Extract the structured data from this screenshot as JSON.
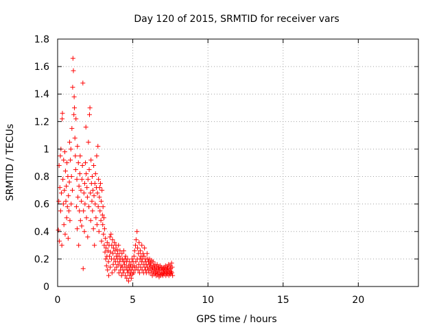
{
  "chart_data": {
    "type": "scatter",
    "title": "Day 120 of 2015, SRMTID for receiver vars",
    "xlabel": "GPS time / hours",
    "ylabel": "SRMTID / TECUs",
    "xlim": [
      0,
      24
    ],
    "ylim": [
      0,
      1.8
    ],
    "xticks": [
      0,
      5,
      10,
      15,
      20
    ],
    "xtick_labels": [
      "0",
      "5",
      "10",
      "15",
      "20"
    ],
    "yticks": [
      0,
      0.2,
      0.4,
      0.6,
      0.8,
      1,
      1.2,
      1.4,
      1.6,
      1.8
    ],
    "ytick_labels": [
      "0",
      "0.2",
      "0.4",
      "0.6",
      "0.8",
      "1",
      "1.2",
      "1.4",
      "1.6",
      "1.8"
    ],
    "grid": true,
    "marker": "+",
    "color": "#ff0000",
    "series": [
      {
        "name": "SRMTID",
        "points": [
          [
            0.05,
            0.41
          ],
          [
            0.08,
            0.62
          ],
          [
            0.1,
            0.88
          ],
          [
            0.12,
            0.33
          ],
          [
            0.15,
            0.72
          ],
          [
            0.18,
            0.95
          ],
          [
            0.2,
            0.55
          ],
          [
            0.22,
            1.0
          ],
          [
            0.25,
            0.68
          ],
          [
            0.28,
            0.3
          ],
          [
            0.3,
            1.22
          ],
          [
            0.32,
            1.26
          ],
          [
            0.35,
            0.78
          ],
          [
            0.38,
            0.6
          ],
          [
            0.4,
            0.92
          ],
          [
            0.42,
            0.45
          ],
          [
            0.45,
            0.7
          ],
          [
            0.48,
            0.98
          ],
          [
            0.5,
            0.38
          ],
          [
            0.52,
            0.84
          ],
          [
            0.55,
            0.62
          ],
          [
            0.58,
            0.73
          ],
          [
            0.6,
            0.5
          ],
          [
            0.62,
            0.9
          ],
          [
            0.65,
            0.58
          ],
          [
            0.68,
            0.8
          ],
          [
            0.7,
            0.35
          ],
          [
            0.72,
            0.66
          ],
          [
            0.75,
            0.55
          ],
          [
            0.78,
            0.76
          ],
          [
            0.8,
            1.05
          ],
          [
            0.82,
            0.48
          ],
          [
            0.85,
            0.92
          ],
          [
            0.88,
            1.0
          ],
          [
            0.9,
            0.6
          ],
          [
            0.92,
            0.8
          ],
          [
            0.95,
            1.15
          ],
          [
            0.98,
            0.7
          ],
          [
            1.0,
            1.45
          ],
          [
            1.02,
            1.66
          ],
          [
            1.05,
            1.57
          ],
          [
            1.08,
            1.25
          ],
          [
            1.1,
            1.38
          ],
          [
            1.12,
            1.3
          ],
          [
            1.15,
            1.08
          ],
          [
            1.18,
            0.95
          ],
          [
            1.2,
            0.85
          ],
          [
            1.22,
            1.22
          ],
          [
            1.25,
            0.58
          ],
          [
            1.28,
            0.78
          ],
          [
            1.3,
            0.42
          ],
          [
            1.32,
            1.02
          ],
          [
            1.35,
            0.65
          ],
          [
            1.38,
            0.9
          ],
          [
            1.4,
            0.3
          ],
          [
            1.42,
            0.73
          ],
          [
            1.45,
            0.55
          ],
          [
            1.48,
            0.82
          ],
          [
            1.5,
            0.95
          ],
          [
            1.52,
            0.48
          ],
          [
            1.55,
            0.7
          ],
          [
            1.58,
            0.62
          ],
          [
            1.6,
            0.44
          ],
          [
            1.62,
            0.78
          ],
          [
            1.65,
            0.88
          ],
          [
            1.68,
            1.48
          ],
          [
            1.7,
            0.13
          ],
          [
            1.72,
            0.55
          ],
          [
            1.75,
            0.68
          ],
          [
            1.78,
            0.4
          ],
          [
            1.8,
            0.75
          ],
          [
            1.82,
            0.6
          ],
          [
            1.85,
            0.9
          ],
          [
            1.88,
            1.16
          ],
          [
            1.9,
            0.82
          ],
          [
            1.92,
            0.5
          ],
          [
            1.95,
            0.72
          ],
          [
            1.98,
            0.65
          ],
          [
            2.0,
            0.36
          ],
          [
            2.02,
            0.78
          ],
          [
            2.05,
            1.05
          ],
          [
            2.08,
            0.58
          ],
          [
            2.1,
            0.85
          ],
          [
            2.12,
            1.25
          ],
          [
            2.15,
            1.3
          ],
          [
            2.18,
            0.68
          ],
          [
            2.2,
            0.48
          ],
          [
            2.22,
            0.92
          ],
          [
            2.25,
            0.75
          ],
          [
            2.28,
            0.62
          ],
          [
            2.3,
            0.8
          ],
          [
            2.32,
            0.55
          ],
          [
            2.35,
            0.7
          ],
          [
            2.38,
            0.42
          ],
          [
            2.4,
            0.88
          ],
          [
            2.42,
            0.66
          ],
          [
            2.45,
            0.3
          ],
          [
            2.48,
            0.75
          ],
          [
            2.5,
            0.6
          ],
          [
            2.52,
            0.82
          ],
          [
            2.55,
            0.5
          ],
          [
            2.58,
            0.72
          ],
          [
            2.6,
            0.95
          ],
          [
            2.62,
            0.45
          ],
          [
            2.65,
            0.68
          ],
          [
            2.68,
            1.02
          ],
          [
            2.7,
            0.58
          ],
          [
            2.72,
            0.78
          ],
          [
            2.75,
            0.4
          ],
          [
            2.78,
            0.65
          ],
          [
            2.8,
            0.72
          ],
          [
            2.82,
            0.55
          ],
          [
            2.85,
            0.75
          ],
          [
            2.88,
            0.48
          ],
          [
            2.9,
            0.62
          ],
          [
            2.92,
            0.33
          ],
          [
            2.95,
            0.7
          ],
          [
            2.98,
            0.52
          ],
          [
            3.0,
            0.45
          ],
          [
            3.02,
            0.58
          ],
          [
            3.05,
            0.38
          ],
          [
            3.08,
            0.5
          ],
          [
            3.1,
            0.3
          ],
          [
            3.12,
            0.42
          ],
          [
            3.15,
            0.25
          ],
          [
            3.18,
            0.35
          ],
          [
            3.2,
            0.2
          ],
          [
            3.22,
            0.28
          ],
          [
            3.25,
            0.15
          ],
          [
            3.28,
            0.22
          ],
          [
            3.3,
            0.32
          ],
          [
            3.32,
            0.12
          ],
          [
            3.35,
            0.26
          ],
          [
            3.38,
            0.18
          ],
          [
            3.4,
            0.08
          ],
          [
            3.42,
            0.3
          ],
          [
            3.45,
            0.22
          ],
          [
            3.48,
            0.36
          ],
          [
            3.5,
            0.14
          ],
          [
            3.52,
            0.25
          ],
          [
            3.55,
            0.38
          ],
          [
            3.58,
            0.2
          ],
          [
            3.6,
            0.3
          ],
          [
            3.62,
            0.1
          ],
          [
            3.65,
            0.34
          ],
          [
            3.68,
            0.24
          ],
          [
            3.7,
            0.16
          ],
          [
            3.72,
            0.28
          ],
          [
            3.75,
            0.2
          ],
          [
            3.78,
            0.32
          ],
          [
            3.8,
            0.12
          ],
          [
            3.82,
            0.26
          ],
          [
            3.85,
            0.18
          ],
          [
            3.88,
            0.3
          ],
          [
            3.9,
            0.22
          ],
          [
            3.92,
            0.14
          ],
          [
            3.95,
            0.27
          ],
          [
            3.98,
            0.2
          ],
          [
            4.0,
            0.24
          ],
          [
            4.02,
            0.16
          ],
          [
            4.05,
            0.3
          ],
          [
            4.08,
            0.1
          ],
          [
            4.1,
            0.22
          ],
          [
            4.12,
            0.18
          ],
          [
            4.15,
            0.26
          ],
          [
            4.18,
            0.12
          ],
          [
            4.2,
            0.2
          ],
          [
            4.22,
            0.15
          ],
          [
            4.25,
            0.08
          ],
          [
            4.28,
            0.24
          ],
          [
            4.3,
            0.14
          ],
          [
            4.32,
            0.2
          ],
          [
            4.35,
            0.1
          ],
          [
            4.38,
            0.18
          ],
          [
            4.4,
            0.26
          ],
          [
            4.42,
            0.12
          ],
          [
            4.45,
            0.16
          ],
          [
            4.48,
            0.2
          ],
          [
            4.5,
            0.08
          ],
          [
            4.52,
            0.22
          ],
          [
            4.55,
            0.14
          ],
          [
            4.58,
            0.18
          ],
          [
            4.6,
            0.06
          ],
          [
            4.62,
            0.12
          ],
          [
            4.65,
            0.2
          ],
          [
            4.68,
            0.1
          ],
          [
            4.7,
            0.15
          ],
          [
            4.72,
            0.04
          ],
          [
            4.75,
            0.12
          ],
          [
            4.78,
            0.18
          ],
          [
            4.8,
            0.08
          ],
          [
            4.82,
            0.14
          ],
          [
            4.85,
            0.1
          ],
          [
            4.88,
            0.16
          ],
          [
            4.9,
            0.06
          ],
          [
            4.92,
            0.12
          ],
          [
            4.95,
            0.2
          ],
          [
            4.98,
            0.09
          ],
          [
            5.0,
            0.14
          ],
          [
            5.02,
            0.18
          ],
          [
            5.05,
            0.1
          ],
          [
            5.08,
            0.22
          ],
          [
            5.1,
            0.15
          ],
          [
            5.12,
            0.26
          ],
          [
            5.15,
            0.12
          ],
          [
            5.18,
            0.3
          ],
          [
            5.2,
            0.18
          ],
          [
            5.22,
            0.34
          ],
          [
            5.25,
            0.14
          ],
          [
            5.28,
            0.4
          ],
          [
            5.3,
            0.2
          ],
          [
            5.32,
            0.28
          ],
          [
            5.35,
            0.12
          ],
          [
            5.38,
            0.24
          ],
          [
            5.4,
            0.16
          ],
          [
            5.42,
            0.32
          ],
          [
            5.45,
            0.1
          ],
          [
            5.48,
            0.2
          ],
          [
            5.5,
            0.26
          ],
          [
            5.52,
            0.14
          ],
          [
            5.55,
            0.22
          ],
          [
            5.58,
            0.18
          ],
          [
            5.6,
            0.3
          ],
          [
            5.62,
            0.12
          ],
          [
            5.65,
            0.2
          ],
          [
            5.68,
            0.24
          ],
          [
            5.7,
            0.16
          ],
          [
            5.72,
            0.1
          ],
          [
            5.75,
            0.22
          ],
          [
            5.78,
            0.28
          ],
          [
            5.8,
            0.14
          ],
          [
            5.82,
            0.18
          ],
          [
            5.85,
            0.12
          ],
          [
            5.88,
            0.2
          ],
          [
            5.9,
            0.1
          ],
          [
            5.92,
            0.16
          ],
          [
            5.95,
            0.24
          ],
          [
            5.98,
            0.14
          ],
          [
            6.0,
            0.2
          ],
          [
            6.02,
            0.12
          ],
          [
            6.05,
            0.18
          ],
          [
            6.08,
            0.1
          ],
          [
            6.1,
            0.16
          ],
          [
            6.12,
            0.2
          ],
          [
            6.15,
            0.13
          ],
          [
            6.18,
            0.17
          ],
          [
            6.2,
            0.1
          ],
          [
            6.22,
            0.15
          ],
          [
            6.25,
            0.19
          ],
          [
            6.28,
            0.12
          ],
          [
            6.3,
            0.08
          ],
          [
            6.32,
            0.14
          ],
          [
            6.35,
            0.18
          ],
          [
            6.38,
            0.11
          ],
          [
            6.4,
            0.15
          ],
          [
            6.42,
            0.09
          ],
          [
            6.45,
            0.13
          ],
          [
            6.48,
            0.16
          ],
          [
            6.5,
            0.1
          ],
          [
            6.52,
            0.12
          ],
          [
            6.55,
            0.08
          ],
          [
            6.58,
            0.14
          ],
          [
            6.6,
            0.11
          ],
          [
            6.62,
            0.16
          ],
          [
            6.65,
            0.09
          ],
          [
            6.68,
            0.13
          ],
          [
            6.7,
            0.1
          ],
          [
            6.72,
            0.14
          ],
          [
            6.75,
            0.07
          ],
          [
            6.78,
            0.12
          ],
          [
            6.8,
            0.1
          ],
          [
            6.82,
            0.15
          ],
          [
            6.85,
            0.08
          ],
          [
            6.88,
            0.12
          ],
          [
            6.9,
            0.1
          ],
          [
            6.92,
            0.14
          ],
          [
            6.95,
            0.09
          ],
          [
            6.98,
            0.12
          ],
          [
            7.0,
            0.08
          ],
          [
            7.02,
            0.13
          ],
          [
            7.05,
            0.1
          ],
          [
            7.08,
            0.14
          ],
          [
            7.1,
            0.09
          ],
          [
            7.12,
            0.12
          ],
          [
            7.15,
            0.11
          ],
          [
            7.18,
            0.15
          ],
          [
            7.2,
            0.08
          ],
          [
            7.22,
            0.12
          ],
          [
            7.25,
            0.1
          ],
          [
            7.28,
            0.14
          ],
          [
            7.3,
            0.09
          ],
          [
            7.32,
            0.13
          ],
          [
            7.35,
            0.11
          ],
          [
            7.38,
            0.16
          ],
          [
            7.4,
            0.08
          ],
          [
            7.42,
            0.12
          ],
          [
            7.45,
            0.1
          ],
          [
            7.48,
            0.15
          ],
          [
            7.5,
            0.09
          ],
          [
            7.52,
            0.13
          ],
          [
            7.55,
            0.11
          ],
          [
            7.58,
            0.17
          ],
          [
            7.6,
            0.1
          ],
          [
            7.62,
            0.14
          ],
          [
            7.65,
            0.08
          ]
        ]
      }
    ]
  }
}
